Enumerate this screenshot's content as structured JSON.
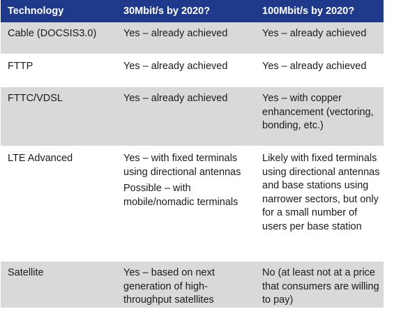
{
  "header": {
    "col1": "Technology",
    "col2": "30Mbit/s by 2020?",
    "col3": "100Mbit/s by 2020?"
  },
  "rows": [
    {
      "technology": "Cable (DOCSIS3.0)",
      "mbit30": [
        "Yes – already achieved"
      ],
      "mbit100": "Yes – already achieved"
    },
    {
      "technology": "FTTP",
      "mbit30": [
        "Yes – already achieved"
      ],
      "mbit100": "Yes – already achieved"
    },
    {
      "technology": "FTTC/VDSL",
      "mbit30": [
        "Yes – already achieved"
      ],
      "mbit100": "Yes – with copper enhancement (vectoring, bonding, etc.)"
    },
    {
      "technology": "LTE Advanced",
      "mbit30": [
        "Yes – with fixed terminals using directional antennas",
        "Possible – with mobile/nomadic terminals"
      ],
      "mbit100": "Likely with fixed terminals using directional antennas and base stations using narrower sectors, but only for a small number of users per base station"
    },
    {
      "technology": "Satellite",
      "mbit30": [
        "Yes – based on next generation of high-throughput satellites"
      ],
      "mbit100": "No (at least not at a price that consumers are willing to pay)"
    }
  ]
}
